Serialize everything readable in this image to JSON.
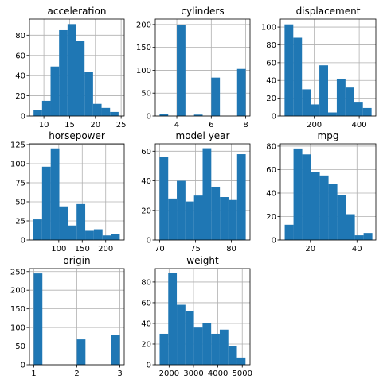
{
  "chart_data": [
    {
      "type": "bar",
      "title": "acceleration",
      "xlim": [
        7.2,
        25.6
      ],
      "ylim": [
        0,
        96
      ],
      "xticks": [
        10,
        15,
        20,
        25
      ],
      "yticks": [
        0,
        20,
        40,
        60,
        80
      ],
      "bins": [
        [
          8.0,
          9.65,
          6
        ],
        [
          9.65,
          11.3,
          15
        ],
        [
          11.3,
          12.95,
          49
        ],
        [
          12.95,
          14.6,
          85
        ],
        [
          14.6,
          16.25,
          91
        ],
        [
          16.25,
          17.9,
          74
        ],
        [
          17.9,
          19.55,
          44
        ],
        [
          19.55,
          21.2,
          12
        ],
        [
          21.2,
          22.85,
          8
        ],
        [
          22.85,
          24.5,
          4
        ]
      ]
    },
    {
      "type": "bar",
      "title": "cylinders",
      "xlim": [
        2.75,
        8.25
      ],
      "ylim": [
        0,
        212
      ],
      "xticks": [
        4,
        6,
        8
      ],
      "yticks": [
        0,
        50,
        100,
        150,
        200
      ],
      "bins": [
        [
          3.0,
          3.5,
          4
        ],
        [
          3.5,
          4.0,
          0
        ],
        [
          4.0,
          4.5,
          199
        ],
        [
          4.5,
          5.0,
          0
        ],
        [
          5.0,
          5.5,
          3
        ],
        [
          5.5,
          6.0,
          0
        ],
        [
          6.0,
          6.5,
          84
        ],
        [
          6.5,
          7.0,
          0
        ],
        [
          7.0,
          7.5,
          0
        ],
        [
          7.5,
          8.0,
          103
        ]
      ]
    },
    {
      "type": "bar",
      "title": "displacement",
      "xlim": [
        49.0,
        474.0
      ],
      "ylim": [
        0,
        109
      ],
      "xticks": [
        200,
        400
      ],
      "yticks": [
        0,
        20,
        40,
        60,
        80,
        100
      ],
      "bins": [
        [
          68.0,
          106.7,
          103
        ],
        [
          106.7,
          145.4,
          88
        ],
        [
          145.4,
          184.1,
          30
        ],
        [
          184.1,
          222.8,
          13
        ],
        [
          222.8,
          261.5,
          57
        ],
        [
          261.5,
          300.2,
          4
        ],
        [
          300.2,
          338.9,
          42
        ],
        [
          338.9,
          377.6,
          32
        ],
        [
          377.6,
          416.3,
          16
        ],
        [
          416.3,
          455.0,
          9
        ]
      ]
    },
    {
      "type": "bar",
      "title": "horsepower",
      "xlim": [
        37.5,
        239.5
      ],
      "ylim": [
        0,
        126
      ],
      "xticks": [
        100,
        150,
        200
      ],
      "yticks": [
        0,
        25,
        50,
        75,
        100,
        125
      ],
      "bins": [
        [
          46,
          64.4,
          27
        ],
        [
          64.4,
          82.8,
          96
        ],
        [
          82.8,
          101.2,
          120
        ],
        [
          101.2,
          119.6,
          44
        ],
        [
          119.6,
          138.0,
          19
        ],
        [
          138.0,
          156.4,
          47
        ],
        [
          156.4,
          174.8,
          12
        ],
        [
          174.8,
          193.2,
          14
        ],
        [
          193.2,
          211.6,
          6
        ],
        [
          211.6,
          230.0,
          8
        ]
      ]
    },
    {
      "type": "bar",
      "title": "model year",
      "xlim": [
        69.4,
        82.6
      ],
      "ylim": [
        0,
        65
      ],
      "xticks": [
        70,
        75,
        80
      ],
      "yticks": [
        0,
        20,
        40,
        60
      ],
      "bins": [
        [
          70.0,
          71.2,
          56
        ],
        [
          71.2,
          72.4,
          28
        ],
        [
          72.4,
          73.6,
          40
        ],
        [
          73.6,
          74.8,
          26
        ],
        [
          74.8,
          76.0,
          30
        ],
        [
          76.0,
          77.2,
          62
        ],
        [
          77.2,
          78.4,
          36
        ],
        [
          78.4,
          79.6,
          29
        ],
        [
          79.6,
          80.8,
          27
        ],
        [
          80.8,
          82.0,
          58
        ]
      ]
    },
    {
      "type": "bar",
      "title": "mpg",
      "xlim": [
        7.1,
        48.1
      ],
      "ylim": [
        0,
        82
      ],
      "xticks": [
        20,
        40
      ],
      "yticks": [
        0,
        20,
        40,
        60,
        80
      ],
      "bins": [
        [
          9.0,
          12.76,
          13
        ],
        [
          12.76,
          16.52,
          78
        ],
        [
          16.52,
          20.28,
          73
        ],
        [
          20.28,
          24.04,
          58
        ],
        [
          24.04,
          27.8,
          55
        ],
        [
          27.8,
          31.56,
          48
        ],
        [
          31.56,
          35.32,
          38
        ],
        [
          35.32,
          39.08,
          22
        ],
        [
          39.08,
          42.84,
          4
        ],
        [
          42.84,
          46.6,
          6
        ]
      ]
    },
    {
      "type": "bar",
      "title": "origin",
      "xlim": [
        0.9,
        3.1
      ],
      "ylim": [
        0,
        258
      ],
      "xticks": [
        1,
        2,
        3
      ],
      "yticks": [
        0,
        50,
        100,
        150,
        200,
        250
      ],
      "bins": [
        [
          1.0,
          1.2,
          245
        ],
        [
          1.2,
          1.4,
          0
        ],
        [
          1.4,
          1.6,
          0
        ],
        [
          1.6,
          1.8,
          0
        ],
        [
          1.8,
          2.0,
          0
        ],
        [
          2.0,
          2.2,
          68
        ],
        [
          2.2,
          2.4,
          0
        ],
        [
          2.4,
          2.6,
          0
        ],
        [
          2.6,
          2.8,
          0
        ],
        [
          2.8,
          3.0,
          79
        ]
      ]
    },
    {
      "type": "bar",
      "title": "weight",
      "xlim": [
        1434.0,
        5319.0
      ],
      "ylim": [
        0,
        93
      ],
      "xticks": [
        2000,
        3000,
        4000,
        5000
      ],
      "yticks": [
        0,
        20,
        40,
        60,
        80
      ],
      "bins": [
        [
          1613,
          1965,
          30
        ],
        [
          1965,
          2317,
          89
        ],
        [
          2317,
          2669,
          58
        ],
        [
          2669,
          3021,
          52
        ],
        [
          3021,
          3373,
          36
        ],
        [
          3373,
          3725,
          40
        ],
        [
          3725,
          4077,
          30
        ],
        [
          4077,
          4429,
          34
        ],
        [
          4429,
          4781,
          18
        ],
        [
          4781,
          5133,
          7
        ]
      ]
    }
  ],
  "colors": {
    "bar": "#1f77b4",
    "grid": "#b0b0b0",
    "axis": "#000000"
  },
  "grid": true
}
